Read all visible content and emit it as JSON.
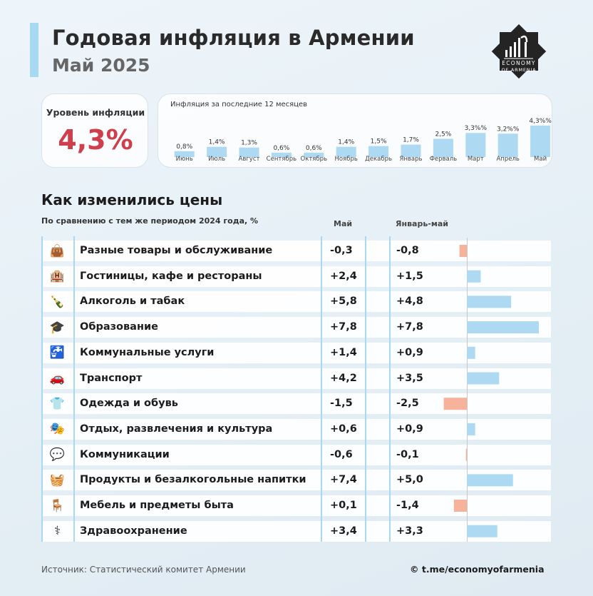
{
  "header": {
    "title": "Годовая инфляция в Армении",
    "subtitle": "Май 2025",
    "logo_line1": "ECONOMY",
    "logo_line2": "OF ARMENIA"
  },
  "inflation": {
    "label": "Уровень инфляции",
    "value": "4,3%"
  },
  "monthly": {
    "title": "Инфляция за последние 12 месяцев",
    "labels": [
      "0,8%",
      "1,4%",
      "1,3%",
      "0,6%",
      "0,6%",
      "1,4%",
      "1,5%",
      "1,7%",
      "2,5%",
      "3,3%%",
      "3,2%%",
      "4,3%%"
    ]
  },
  "prices": {
    "title": "Как изменились цены",
    "subtitle": "По сравнению с тем же периодом 2024 года, %",
    "col_may": "Май",
    "col_jan_may": "Январь-май",
    "rows": [
      {
        "category": "Разные товары и обслуживание",
        "may": "-0,3",
        "jan_may": "-0,8",
        "icon": "shopping-bag-icon",
        "glyph": "👜"
      },
      {
        "category": "Гостиницы, кафе и рестораны",
        "may": "+2,4",
        "jan_may": "+1,5",
        "icon": "hotel-icon",
        "glyph": "🏨"
      },
      {
        "category": "Алкоголь и табак",
        "may": "+5,8",
        "jan_may": "+4,8",
        "icon": "bottle-icon",
        "glyph": "🍾"
      },
      {
        "category": "Образование",
        "may": "+7,8",
        "jan_may": "+7,8",
        "icon": "graduate-icon",
        "glyph": "🎓"
      },
      {
        "category": "Коммунальные услуги",
        "may": "+1,4",
        "jan_may": "+0,9",
        "icon": "faucet-icon",
        "glyph": "🚰"
      },
      {
        "category": "Транспорт",
        "may": "+4,2",
        "jan_may": "+3,5",
        "icon": "car-icon",
        "glyph": "🚗"
      },
      {
        "category": "Одежда и обувь",
        "may": "-1,5",
        "jan_may": "-2,5",
        "icon": "tshirt-icon",
        "glyph": "👕"
      },
      {
        "category": "Отдых, развлечения и культура",
        "may": "+0,6",
        "jan_may": "+0,9",
        "icon": "theater-masks-icon",
        "glyph": "🎭"
      },
      {
        "category": "Коммуникации",
        "may": "-0,6",
        "jan_may": "-0,1",
        "icon": "communication-icon",
        "glyph": "💬"
      },
      {
        "category": "Продукты и безалкогольные напитки",
        "may": "+7,4",
        "jan_may": "+5,0",
        "icon": "groceries-icon",
        "glyph": "🧺"
      },
      {
        "category": "Мебель и предметы быта",
        "may": "+0,1",
        "jan_may": "-1,4",
        "icon": "chair-icon",
        "glyph": "🪑"
      },
      {
        "category": "Здравоохранение",
        "may": "+3,4",
        "jan_may": "+3,3",
        "icon": "healthcare-icon",
        "glyph": "⚕"
      }
    ]
  },
  "footer": {
    "source": "Источник: Статистический комитет Армении",
    "credit": "© t.me/economyofarmenia"
  },
  "colors": {
    "accent": "#a9d8f2",
    "positive_bar": "#aed9f3",
    "negative_bar": "#f6b29b",
    "headline_red": "#cf3f4b"
  },
  "chart_data": [
    {
      "type": "bar",
      "title": "Инфляция за последние 12 месяцев",
      "categories": [
        "Июнь",
        "Июль",
        "Август",
        "Сентябрь",
        "Октябрь",
        "Ноябрь",
        "Декабрь",
        "Январь",
        "Ферваль",
        "Март",
        "Апрель",
        "Май"
      ],
      "values": [
        0.8,
        1.4,
        1.3,
        0.6,
        0.6,
        1.4,
        1.5,
        1.7,
        2.5,
        3.3,
        3.2,
        4.3
      ],
      "ylim": [
        0,
        4.3
      ]
    },
    {
      "type": "bar",
      "orientation": "horizontal",
      "title": "Январь-май",
      "categories": [
        "Разные товары и обслуживание",
        "Гостиницы, кафе и рестораны",
        "Алкоголь и табак",
        "Образование",
        "Коммунальные услуги",
        "Транспорт",
        "Одежда и обувь",
        "Отдых, развлечения и культура",
        "Коммуникации",
        "Продукты и безалкогольные напитки",
        "Мебель и предметы быта",
        "Здравоохранение"
      ],
      "values": [
        -0.8,
        1.5,
        4.8,
        7.8,
        0.9,
        3.5,
        -2.5,
        0.9,
        -0.1,
        5.0,
        -1.4,
        3.3
      ],
      "xlim": [
        -2.5,
        7.8
      ]
    }
  ]
}
